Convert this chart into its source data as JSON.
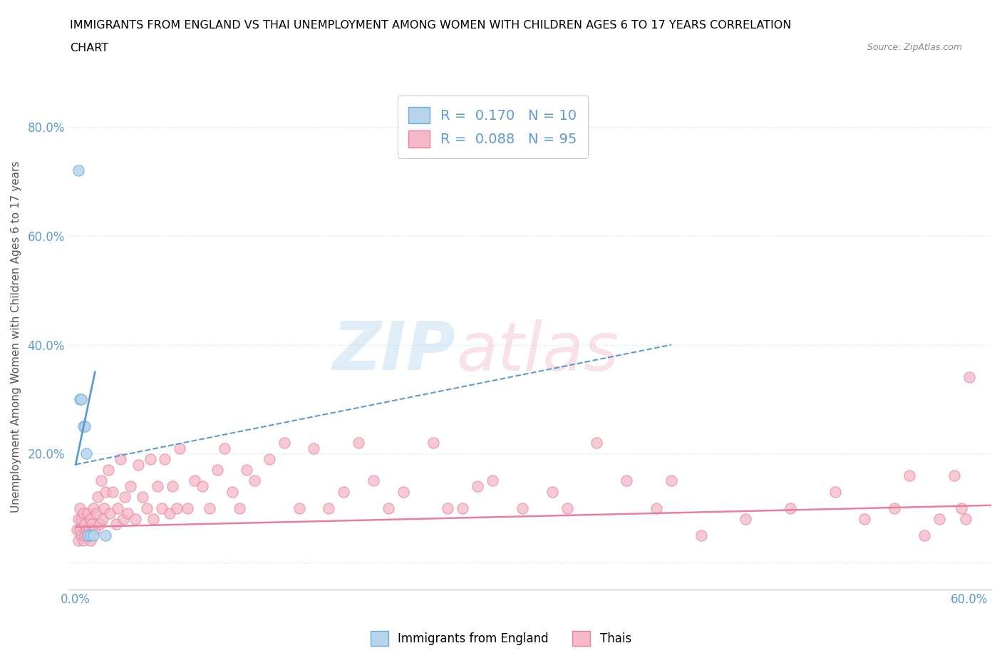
{
  "title_line1": "IMMIGRANTS FROM ENGLAND VS THAI UNEMPLOYMENT AMONG WOMEN WITH CHILDREN AGES 6 TO 17 YEARS CORRELATION",
  "title_line2": "CHART",
  "source": "Source: ZipAtlas.com",
  "ylabel": "Unemployment Among Women with Children Ages 6 to 17 years",
  "xlim": [
    -0.005,
    0.615
  ],
  "ylim": [
    -0.05,
    0.88
  ],
  "xticks": [
    0.0,
    0.1,
    0.2,
    0.3,
    0.4,
    0.5,
    0.6
  ],
  "xticklabels_show": [
    "0.0%",
    "",
    "",
    "",
    "",
    "",
    "60.0%"
  ],
  "yticks": [
    0.0,
    0.2,
    0.4,
    0.6,
    0.8
  ],
  "yticklabels_show": [
    "",
    "20.0%",
    "40.0%",
    "60.0%",
    "80.0%"
  ],
  "england_R": 0.17,
  "england_N": 10,
  "thai_R": 0.088,
  "thai_N": 95,
  "england_color": "#b8d4ed",
  "thai_color": "#f4b8c8",
  "england_edge_color": "#6baed6",
  "thai_edge_color": "#e87fa0",
  "england_line_color": "#5b9bd5",
  "thai_line_color": "#e87fa0",
  "legend_R_color": "#5b9bd5",
  "grid_color": "#ddeeff",
  "england_x": [
    0.002,
    0.003,
    0.004,
    0.005,
    0.006,
    0.007,
    0.008,
    0.01,
    0.012,
    0.02
  ],
  "england_y": [
    0.72,
    0.3,
    0.3,
    0.25,
    0.25,
    0.2,
    0.05,
    0.05,
    0.05,
    0.05
  ],
  "england_trendline_x": [
    0.0,
    0.4
  ],
  "england_trendline_y": [
    0.18,
    0.4
  ],
  "thai_x": [
    0.001,
    0.002,
    0.002,
    0.003,
    0.003,
    0.004,
    0.004,
    0.005,
    0.005,
    0.006,
    0.006,
    0.007,
    0.008,
    0.008,
    0.009,
    0.01,
    0.01,
    0.011,
    0.012,
    0.013,
    0.014,
    0.015,
    0.016,
    0.017,
    0.018,
    0.019,
    0.02,
    0.022,
    0.023,
    0.025,
    0.027,
    0.028,
    0.03,
    0.032,
    0.033,
    0.035,
    0.037,
    0.04,
    0.042,
    0.045,
    0.048,
    0.05,
    0.052,
    0.055,
    0.058,
    0.06,
    0.063,
    0.065,
    0.068,
    0.07,
    0.075,
    0.08,
    0.085,
    0.09,
    0.095,
    0.1,
    0.105,
    0.11,
    0.115,
    0.12,
    0.13,
    0.14,
    0.15,
    0.16,
    0.17,
    0.18,
    0.19,
    0.2,
    0.21,
    0.22,
    0.24,
    0.26,
    0.28,
    0.3,
    0.32,
    0.35,
    0.37,
    0.39,
    0.42,
    0.45,
    0.48,
    0.51,
    0.53,
    0.55,
    0.57,
    0.58,
    0.59,
    0.595,
    0.598,
    0.6,
    0.25,
    0.27,
    0.33,
    0.4,
    0.56
  ],
  "thai_y": [
    0.06,
    0.04,
    0.08,
    0.06,
    0.1,
    0.05,
    0.08,
    0.04,
    0.09,
    0.05,
    0.07,
    0.06,
    0.05,
    0.09,
    0.06,
    0.08,
    0.04,
    0.07,
    0.1,
    0.06,
    0.09,
    0.12,
    0.07,
    0.15,
    0.08,
    0.1,
    0.13,
    0.17,
    0.09,
    0.13,
    0.07,
    0.1,
    0.19,
    0.08,
    0.12,
    0.09,
    0.14,
    0.08,
    0.18,
    0.12,
    0.1,
    0.19,
    0.08,
    0.14,
    0.1,
    0.19,
    0.09,
    0.14,
    0.1,
    0.21,
    0.1,
    0.15,
    0.14,
    0.1,
    0.17,
    0.21,
    0.13,
    0.1,
    0.17,
    0.15,
    0.19,
    0.22,
    0.1,
    0.21,
    0.1,
    0.13,
    0.22,
    0.15,
    0.1,
    0.13,
    0.22,
    0.1,
    0.15,
    0.1,
    0.13,
    0.22,
    0.15,
    0.1,
    0.05,
    0.08,
    0.1,
    0.13,
    0.08,
    0.1,
    0.05,
    0.08,
    0.16,
    0.1,
    0.08,
    0.34,
    0.1,
    0.14,
    0.1,
    0.15,
    0.16
  ],
  "thai_trendline_x": [
    0.0,
    0.615
  ],
  "thai_trendline_y": [
    0.065,
    0.105
  ]
}
